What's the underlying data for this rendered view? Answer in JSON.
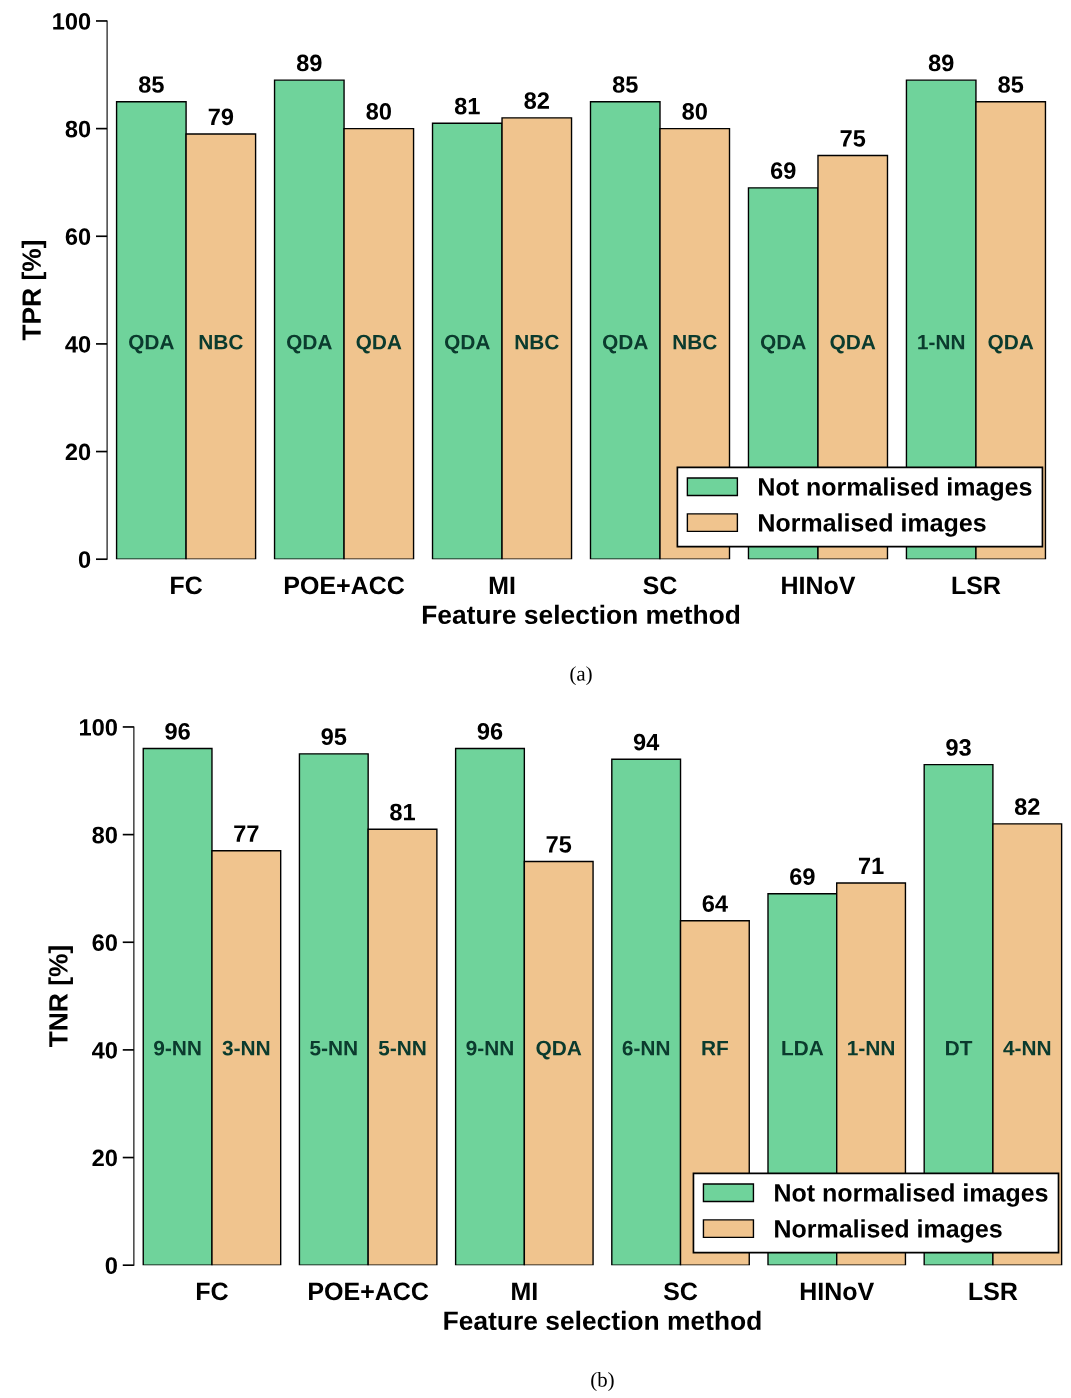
{
  "chart_data": [
    {
      "type": "bar",
      "xlabel": "Feature selection method",
      "ylabel": "TPR [%]",
      "categories": [
        "FC",
        "POE+ACC",
        "MI",
        "SC",
        "HINoV",
        "LSR"
      ],
      "series": [
        {
          "name": "Not normalised images",
          "color": "#6fd39b",
          "values": [
            85,
            89,
            81,
            85,
            69,
            89
          ]
        },
        {
          "name": "Normalised images",
          "color": "#f0c48e",
          "values": [
            79,
            80,
            82,
            80,
            75,
            85
          ]
        }
      ],
      "ylim": [
        0,
        100
      ],
      "yticks": [
        0,
        20,
        40,
        60,
        80,
        100
      ],
      "grid": false,
      "legend": "bottom right",
      "data_labels": true,
      "annotations": [
        {
          "text": "QDA",
          "x": "FC",
          "y": 40
        },
        {
          "text": "NBC",
          "x": "FC",
          "y": 40
        },
        {
          "text": "QDA",
          "x": "POE+ACC",
          "y": 40
        },
        {
          "text": "QDA",
          "x": "POE+ACC",
          "y": 40
        },
        {
          "text": "QDA",
          "x": "MI",
          "y": 40
        },
        {
          "text": "NBC",
          "x": "MI",
          "y": 40
        },
        {
          "text": "QDA",
          "x": "SC",
          "y": 40
        },
        {
          "text": "NBC",
          "x": "SC",
          "y": 40
        },
        {
          "text": "QDA",
          "x": "HINoV",
          "y": 40
        },
        {
          "text": "QDA",
          "x": "HINoV",
          "y": 40
        },
        {
          "text": "1-NN",
          "x": "LSR",
          "y": 40
        },
        {
          "text": "QDA",
          "x": "LSR",
          "y": 40
        },
        "(a)"
      ]
    },
    {
      "type": "bar",
      "xlabel": "Feature selection method",
      "ylabel": "TNR [%]",
      "categories": [
        "FC",
        "POE+ACC",
        "MI",
        "SC",
        "HINoV",
        "LSR"
      ],
      "series": [
        {
          "name": "Not normalised images",
          "color": "#6fd39b",
          "values": [
            96,
            95,
            96,
            94,
            69,
            93
          ]
        },
        {
          "name": "Normalised images",
          "color": "#f0c48e",
          "values": [
            77,
            81,
            75,
            64,
            71,
            82
          ]
        }
      ],
      "ylim": [
        0,
        100
      ],
      "yticks": [
        0,
        20,
        40,
        60,
        80,
        100
      ],
      "grid": false,
      "legend": "bottom right",
      "data_labels": true,
      "annotations": [
        {
          "text": "9-NN",
          "x": "FC",
          "y": 40
        },
        {
          "text": "3-NN",
          "x": "FC",
          "y": 40
        },
        {
          "text": "5-NN",
          "x": "POE+ACC",
          "y": 40
        },
        {
          "text": "5-NN",
          "x": "POE+ACC",
          "y": 40
        },
        {
          "text": "9-NN",
          "x": "MI",
          "y": 40
        },
        {
          "text": "QDA",
          "x": "MI",
          "y": 40
        },
        {
          "text": "6-NN",
          "x": "SC",
          "y": 40
        },
        {
          "text": "RF",
          "x": "SC",
          "y": 40
        },
        {
          "text": "LDA",
          "x": "HINoV",
          "y": 40
        },
        {
          "text": "1-NN",
          "x": "HINoV",
          "y": 40
        },
        {
          "text": "DT",
          "x": "LSR",
          "y": 40
        },
        {
          "text": "4-NN",
          "x": "LSR",
          "y": 40
        },
        "(b)"
      ]
    }
  ]
}
